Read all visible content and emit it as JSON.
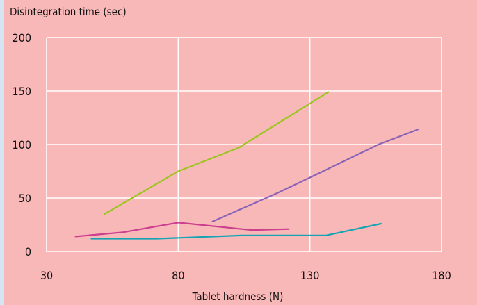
{
  "chart_data": {
    "type": "line",
    "ylabel": "Disintegration time (sec)",
    "xlabel": "Tablet hardness (N)",
    "xlim": [
      30,
      180
    ],
    "ylim": [
      0,
      200
    ],
    "x_ticks": [
      30,
      80,
      130,
      180
    ],
    "y_ticks": [
      0,
      50,
      100,
      150,
      200
    ],
    "grid": true,
    "colors": {
      "background": "#f8b8b8",
      "grid": "#ffffff"
    },
    "series": [
      {
        "color": "#9ac41e",
        "points": [
          [
            52,
            35
          ],
          [
            80,
            75
          ],
          [
            103,
            97
          ],
          [
            137,
            149
          ]
        ]
      },
      {
        "color": "#8a62b8",
        "points": [
          [
            93,
            28
          ],
          [
            118,
            55
          ],
          [
            135,
            75
          ],
          [
            156,
            100
          ],
          [
            171,
            114
          ]
        ]
      },
      {
        "color": "#cc3e8e",
        "points": [
          [
            41,
            14
          ],
          [
            59,
            18
          ],
          [
            80,
            27
          ],
          [
            108,
            20
          ],
          [
            122,
            21
          ]
        ]
      },
      {
        "color": "#16a4b4",
        "points": [
          [
            47,
            12
          ],
          [
            72,
            12
          ],
          [
            104,
            15
          ],
          [
            136,
            15
          ],
          [
            157,
            26
          ]
        ]
      }
    ]
  }
}
